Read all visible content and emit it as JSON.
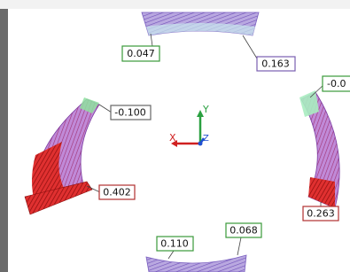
{
  "callouts": [
    "0.047",
    "0.163",
    "-0.0",
    "-0.100",
    "0.402",
    "0.263",
    "0.110",
    "0.068"
  ],
  "axes": {
    "y": "Y",
    "x": "X",
    "z": "Z"
  }
}
